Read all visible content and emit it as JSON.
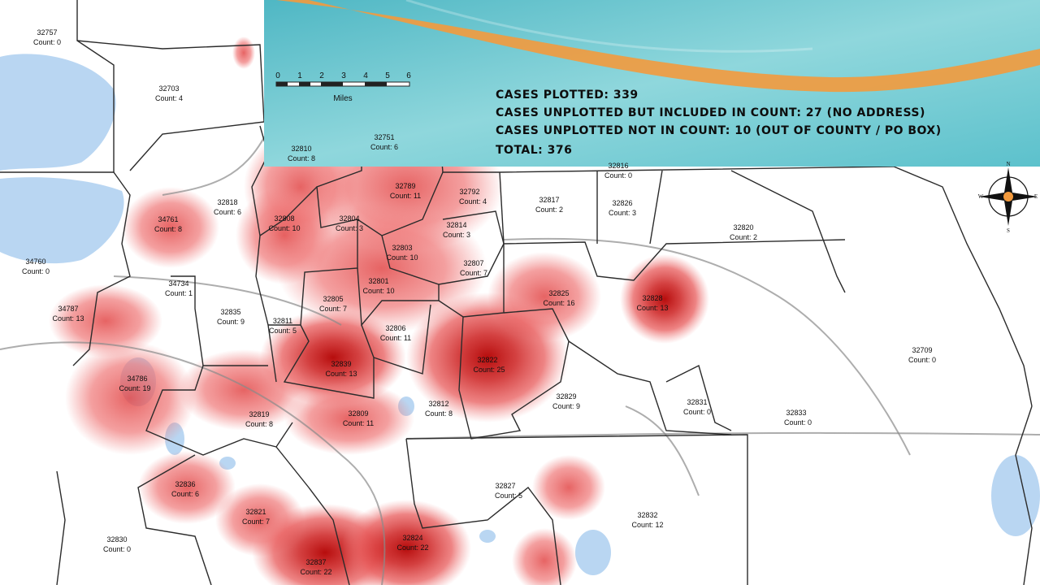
{
  "summary": {
    "plotted": "CASES PLOTTED: 339",
    "unplotted_included": "CASES UNPLOTTED BUT INCLUDED IN COUNT: 27 (NO ADDRESS)",
    "unplotted_excluded": "CASES UNPLOTTED NOT IN COUNT: 10 (OUT OF COUNTY / PO BOX)",
    "total": "TOTAL: 376"
  },
  "scale_bar": {
    "ticks": [
      "0",
      "1",
      "2",
      "3",
      "4",
      "5",
      "6"
    ],
    "unit": "Miles"
  },
  "compass": {
    "n": "N",
    "s": "S",
    "e": "E",
    "w": "W"
  },
  "colors": {
    "heat_light": "#f08080",
    "heat_mid": "#e85a5a",
    "heat_dark": "#cc1f1f",
    "heat_core": "#b30000",
    "water": "#b9d6f2",
    "banner_teal": "#5fc6cf",
    "banner_stripe": "#f39a3d",
    "boundary": "#2b2b2b",
    "road": "#8a8a8a"
  },
  "zips": [
    {
      "zip": "32757",
      "count": "Count: 0"
    },
    {
      "zip": "32703",
      "count": "Count: 4"
    },
    {
      "zip": "32810",
      "count": "Count: 8"
    },
    {
      "zip": "32751",
      "count": "Count: 6"
    },
    {
      "zip": "32789",
      "count": "Count: 11"
    },
    {
      "zip": "32792",
      "count": "Count: 4"
    },
    {
      "zip": "32816",
      "count": "Count: 0"
    },
    {
      "zip": "32817",
      "count": "Count: 2"
    },
    {
      "zip": "32826",
      "count": "Count: 3"
    },
    {
      "zip": "32820",
      "count": "Count: 2"
    },
    {
      "zip": "32818",
      "count": "Count: 6"
    },
    {
      "zip": "34761",
      "count": "Count: 8"
    },
    {
      "zip": "32808",
      "count": "Count: 10"
    },
    {
      "zip": "32804",
      "count": "Count: 3"
    },
    {
      "zip": "32814",
      "count": "Count: 3"
    },
    {
      "zip": "32803",
      "count": "Count: 10"
    },
    {
      "zip": "32807",
      "count": "Count: 7"
    },
    {
      "zip": "34760",
      "count": "Count: 0"
    },
    {
      "zip": "34734",
      "count": "Count: 1"
    },
    {
      "zip": "32801",
      "count": "Count: 10"
    },
    {
      "zip": "32805",
      "count": "Count: 7"
    },
    {
      "zip": "32825",
      "count": "Count: 16"
    },
    {
      "zip": "32828",
      "count": "Count: 13"
    },
    {
      "zip": "34787",
      "count": "Count: 13"
    },
    {
      "zip": "32835",
      "count": "Count: 9"
    },
    {
      "zip": "32811",
      "count": "Count: 5"
    },
    {
      "zip": "32806",
      "count": "Count: 11"
    },
    {
      "zip": "32822",
      "count": "Count: 25"
    },
    {
      "zip": "32709",
      "count": "Count: 0"
    },
    {
      "zip": "32839",
      "count": "Count: 13"
    },
    {
      "zip": "34786",
      "count": "Count: 19"
    },
    {
      "zip": "32812",
      "count": "Count: 8"
    },
    {
      "zip": "32829",
      "count": "Count: 9"
    },
    {
      "zip": "32831",
      "count": "Count: 0"
    },
    {
      "zip": "32833",
      "count": "Count: 0"
    },
    {
      "zip": "32819",
      "count": "Count: 8"
    },
    {
      "zip": "32809",
      "count": "Count: 11"
    },
    {
      "zip": "32827",
      "count": "Count: 5"
    },
    {
      "zip": "32836",
      "count": "Count: 6"
    },
    {
      "zip": "32821",
      "count": "Count: 7"
    },
    {
      "zip": "32832",
      "count": "Count: 12"
    },
    {
      "zip": "32830",
      "count": "Count: 0"
    },
    {
      "zip": "32824",
      "count": "Count: 22"
    },
    {
      "zip": "32837",
      "count": "Count: 22"
    }
  ]
}
